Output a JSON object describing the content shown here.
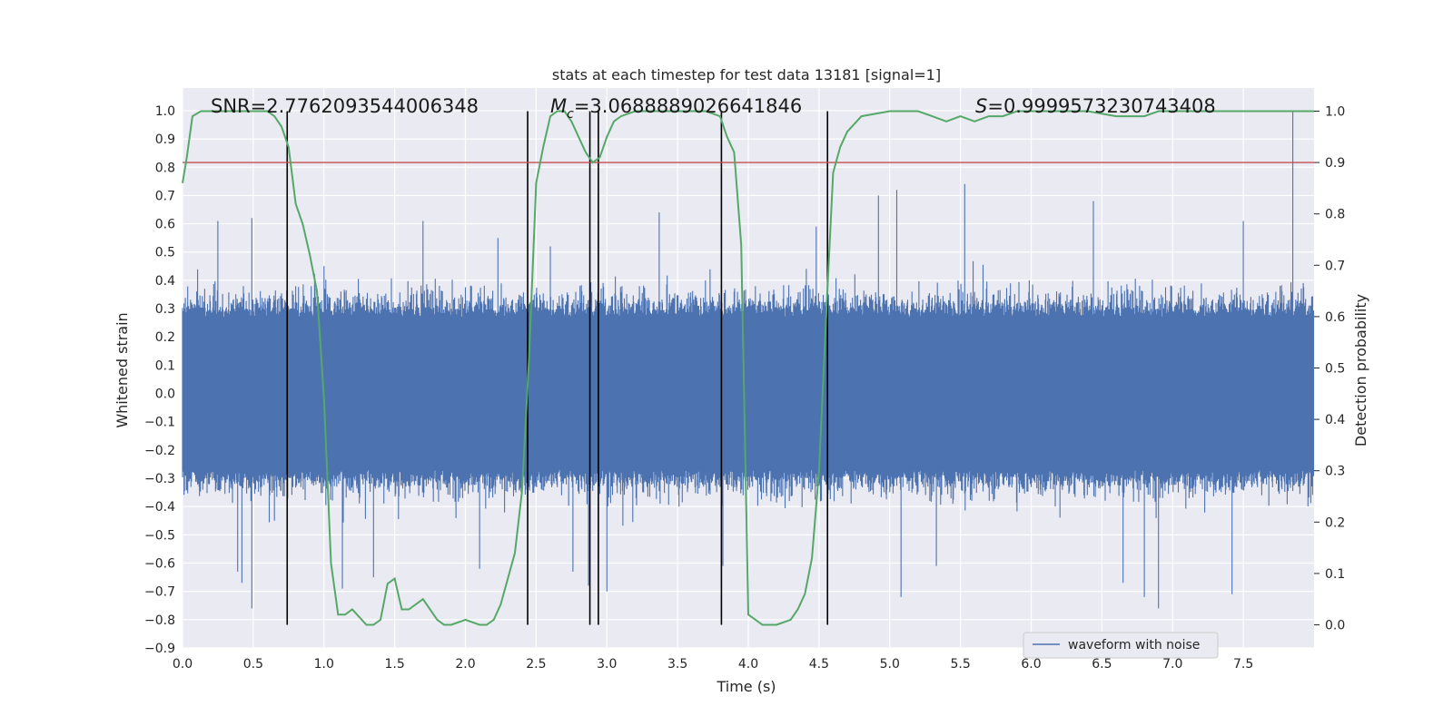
{
  "chart_data": {
    "type": "line",
    "title": "stats at each timestep for test data 13181 [signal=1]",
    "xlabel": "Time (s)",
    "ylabel": "Whitened strain",
    "ylabel_right": "Detection probability",
    "xlim": [
      0.0,
      8.0
    ],
    "ylim": [
      -0.9,
      1.08
    ],
    "ylim_right": [
      -0.045,
      1.045
    ],
    "x_ticks": [
      "0.0",
      "0.5",
      "1.0",
      "1.5",
      "2.0",
      "2.5",
      "3.0",
      "3.5",
      "4.0",
      "4.5",
      "5.0",
      "5.5",
      "6.0",
      "6.5",
      "7.0",
      "7.5"
    ],
    "y_ticks": [
      "1.0",
      "0.9",
      "0.8",
      "0.7",
      "0.6",
      "0.5",
      "0.4",
      "0.3",
      "0.2",
      "0.1",
      "0.0",
      "−0.1",
      "−0.2",
      "−0.3",
      "−0.4",
      "−0.5",
      "−0.6",
      "−0.7",
      "−0.8",
      "−0.9"
    ],
    "y_ticks_right": [
      "1.0",
      "0.9",
      "0.8",
      "0.7",
      "0.6",
      "0.5",
      "0.4",
      "0.3",
      "0.2",
      "0.1",
      "0.0"
    ],
    "annotations": {
      "snr": "SNR=2.7762093544006348",
      "mc_symbol": "M",
      "mc_sub": "c",
      "mc_value": "=3.0688889026641846",
      "s_symbol": "S",
      "s_value": "=0.9999573230743408"
    },
    "threshold": {
      "value": 0.9,
      "axis": "right",
      "color": "#c44e52"
    },
    "vertical_lines_x": [
      0.74,
      2.44,
      2.88,
      2.94,
      3.81,
      4.56
    ],
    "series": [
      {
        "name": "waveform with noise",
        "axis": "left",
        "color": "#4c72b0",
        "style": "dense noise, core band approx -0.27 to 0.27, peaks to ~1.0 at 7.85 s and down to ~-0.76",
        "spikes_positive": [
          [
            0.25,
            0.61
          ],
          [
            0.49,
            0.62
          ],
          [
            1.0,
            0.45
          ],
          [
            1.7,
            0.61
          ],
          [
            2.23,
            0.55
          ],
          [
            2.6,
            0.52
          ],
          [
            3.37,
            0.64
          ],
          [
            4.48,
            0.59
          ],
          [
            4.92,
            0.7
          ],
          [
            5.05,
            0.72
          ],
          [
            5.53,
            0.74
          ],
          [
            6.44,
            0.68
          ],
          [
            7.5,
            0.61
          ],
          [
            7.85,
            1.0
          ]
        ],
        "spikes_negative": [
          [
            0.39,
            -0.63
          ],
          [
            0.42,
            -0.67
          ],
          [
            0.49,
            -0.76
          ],
          [
            1.13,
            -0.69
          ],
          [
            1.35,
            -0.65
          ],
          [
            2.1,
            -0.62
          ],
          [
            2.76,
            -0.63
          ],
          [
            2.87,
            -0.68
          ],
          [
            3.0,
            -0.7
          ],
          [
            3.82,
            -0.61
          ],
          [
            5.08,
            -0.72
          ],
          [
            5.33,
            -0.61
          ],
          [
            6.65,
            -0.67
          ],
          [
            6.8,
            -0.72
          ],
          [
            6.9,
            -0.76
          ],
          [
            7.42,
            -0.71
          ]
        ]
      },
      {
        "name": "",
        "axis": "right",
        "color": "#55a868",
        "x": [
          0.0,
          0.03,
          0.07,
          0.13,
          0.2,
          0.3,
          0.4,
          0.5,
          0.6,
          0.65,
          0.7,
          0.75,
          0.8,
          0.85,
          0.9,
          0.95,
          1.0,
          1.05,
          1.1,
          1.15,
          1.2,
          1.3,
          1.35,
          1.4,
          1.45,
          1.5,
          1.55,
          1.6,
          1.7,
          1.8,
          1.85,
          1.9,
          2.0,
          2.1,
          2.15,
          2.2,
          2.25,
          2.3,
          2.35,
          2.4,
          2.45,
          2.5,
          2.55,
          2.6,
          2.65,
          2.7,
          2.75,
          2.8,
          2.85,
          2.9,
          2.95,
          3.0,
          3.05,
          3.1,
          3.2,
          3.3,
          3.5,
          3.7,
          3.8,
          3.85,
          3.9,
          3.95,
          4.0,
          4.1,
          4.2,
          4.3,
          4.35,
          4.4,
          4.45,
          4.5,
          4.55,
          4.6,
          4.65,
          4.7,
          4.8,
          5.0,
          5.1,
          5.2,
          5.3,
          5.4,
          5.5,
          5.6,
          5.7,
          5.8,
          5.9,
          6.0,
          6.2,
          6.4,
          6.6,
          6.8,
          6.9,
          7.0,
          7.2,
          7.5,
          7.8,
          8.0
        ],
        "y": [
          0.86,
          0.91,
          0.99,
          1.0,
          1.0,
          1.0,
          1.0,
          1.0,
          1.0,
          0.99,
          0.97,
          0.93,
          0.82,
          0.78,
          0.72,
          0.65,
          0.44,
          0.12,
          0.02,
          0.02,
          0.03,
          0.0,
          0.0,
          0.01,
          0.08,
          0.09,
          0.03,
          0.03,
          0.05,
          0.01,
          0.0,
          0.0,
          0.01,
          0.0,
          0.0,
          0.01,
          0.04,
          0.09,
          0.14,
          0.26,
          0.52,
          0.86,
          0.93,
          0.99,
          1.0,
          1.0,
          0.98,
          0.95,
          0.92,
          0.9,
          0.91,
          0.95,
          0.98,
          0.99,
          1.0,
          1.0,
          1.0,
          1.0,
          0.99,
          0.95,
          0.92,
          0.74,
          0.02,
          0.0,
          0.0,
          0.01,
          0.03,
          0.06,
          0.13,
          0.3,
          0.6,
          0.88,
          0.93,
          0.96,
          0.99,
          1.0,
          1.0,
          1.0,
          0.99,
          0.98,
          0.99,
          0.98,
          0.99,
          0.99,
          1.0,
          1.0,
          1.0,
          1.0,
          0.99,
          0.99,
          1.0,
          1.0,
          1.0,
          1.0,
          1.0,
          1.0
        ]
      }
    ],
    "grid": true,
    "legend_placement": "lower-right"
  }
}
